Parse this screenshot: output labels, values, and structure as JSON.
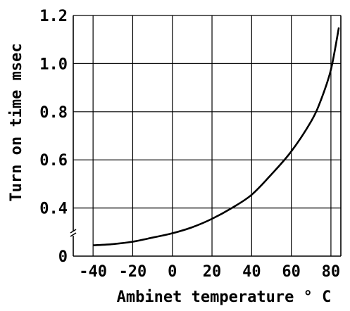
{
  "chart_data": {
    "type": "line",
    "xlabel": "Ambinet temperature ° C",
    "ylabel": "Turn on time msec",
    "xlim": [
      -50,
      85
    ],
    "ylim": [
      0.2,
      1.2
    ],
    "x_ticks": [
      -40,
      -20,
      0,
      20,
      40,
      60,
      80
    ],
    "x_tick_labels": [
      "-40",
      "-20",
      "0",
      "20",
      "40",
      "60",
      "80"
    ],
    "y_ticks": [
      0.4,
      0.6,
      0.8,
      1.0,
      1.2
    ],
    "y_tick_labels": [
      "0.4",
      "0.6",
      "0.8",
      "1.0",
      "1.2"
    ],
    "y_zero_label": "0",
    "y_axis_break": true,
    "grid": true,
    "series": [
      {
        "x": [
          -40,
          -30,
          -20,
          -10,
          0,
          10,
          20,
          30,
          40,
          50,
          60,
          70,
          75,
          80,
          84
        ],
        "y": [
          0.245,
          0.25,
          0.26,
          0.277,
          0.295,
          0.32,
          0.355,
          0.4,
          0.455,
          0.54,
          0.635,
          0.76,
          0.85,
          0.975,
          1.15
        ]
      }
    ]
  }
}
